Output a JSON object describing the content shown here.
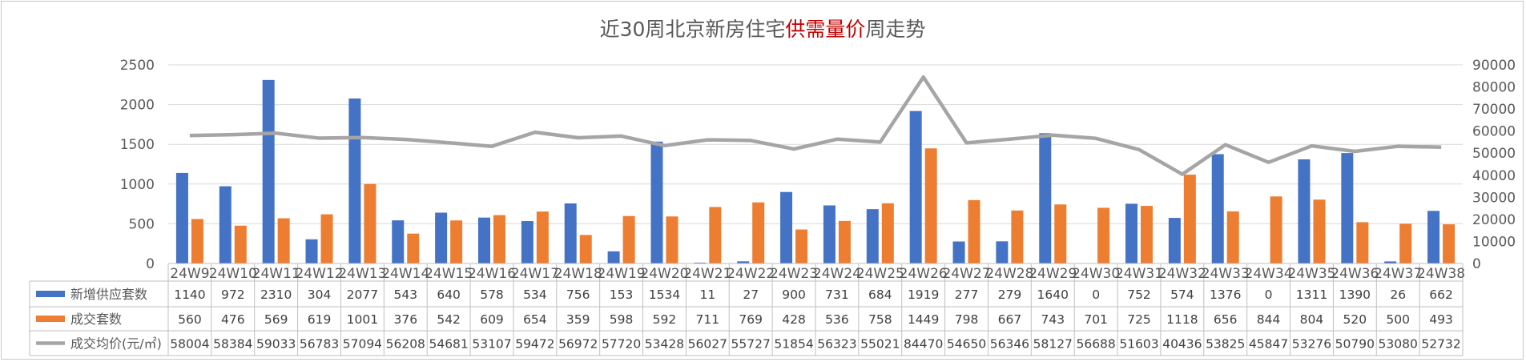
{
  "title": {
    "prefix": "近30周北京新房住宅",
    "highlight": "供需量价",
    "suffix": "周走势",
    "highlight_color": "#c00000"
  },
  "chart_data": {
    "type": "bar",
    "title": "近30周北京新房住宅供需量价周走势",
    "categories": [
      "24W9",
      "24W10",
      "24W11",
      "24W12",
      "24W13",
      "24W14",
      "24W15",
      "24W16",
      "24W17",
      "24W18",
      "24W19",
      "24W20",
      "24W21",
      "24W22",
      "24W23",
      "24W24",
      "24W25",
      "24W26",
      "24W27",
      "24W28",
      "24W29",
      "24W30",
      "24W31",
      "24W32",
      "24W33",
      "24W34",
      "24W35",
      "24W36",
      "24W37",
      "24W38"
    ],
    "series": [
      {
        "name": "新增供应套数",
        "type": "bar",
        "axis": "left",
        "color": "#4472c4",
        "values": [
          1140,
          972,
          2310,
          304,
          2077,
          543,
          640,
          578,
          534,
          756,
          153,
          1534,
          11,
          27,
          900,
          731,
          684,
          1919,
          277,
          279,
          1640,
          0,
          752,
          574,
          1376,
          0,
          1311,
          1390,
          26,
          662
        ]
      },
      {
        "name": "成交套数",
        "type": "bar",
        "axis": "left",
        "color": "#ed7d31",
        "values": [
          560,
          476,
          569,
          619,
          1001,
          376,
          542,
          609,
          654,
          359,
          598,
          592,
          711,
          769,
          428,
          536,
          758,
          1449,
          798,
          667,
          743,
          701,
          725,
          1118,
          656,
          844,
          804,
          520,
          500,
          493
        ]
      },
      {
        "name": "成交均价(元/㎡)",
        "type": "line",
        "axis": "right",
        "color": "#a5a5a5",
        "values": [
          58004,
          58384,
          59033,
          56783,
          57094,
          56208,
          54681,
          53107,
          59472,
          56972,
          57720,
          53428,
          56027,
          55727,
          51854,
          56323,
          55021,
          84470,
          54650,
          56346,
          58127,
          56688,
          51603,
          40436,
          53825,
          45847,
          53276,
          50790,
          53080,
          52732
        ]
      }
    ],
    "y_left": {
      "ylim": [
        0,
        2500
      ],
      "ticks": [
        0,
        500,
        1000,
        1500,
        2000,
        2500
      ]
    },
    "y_right": {
      "ylim": [
        0,
        90000
      ],
      "ticks": [
        0,
        10000,
        20000,
        30000,
        40000,
        50000,
        60000,
        70000,
        80000,
        90000
      ]
    },
    "grid": true,
    "data_table": true
  }
}
